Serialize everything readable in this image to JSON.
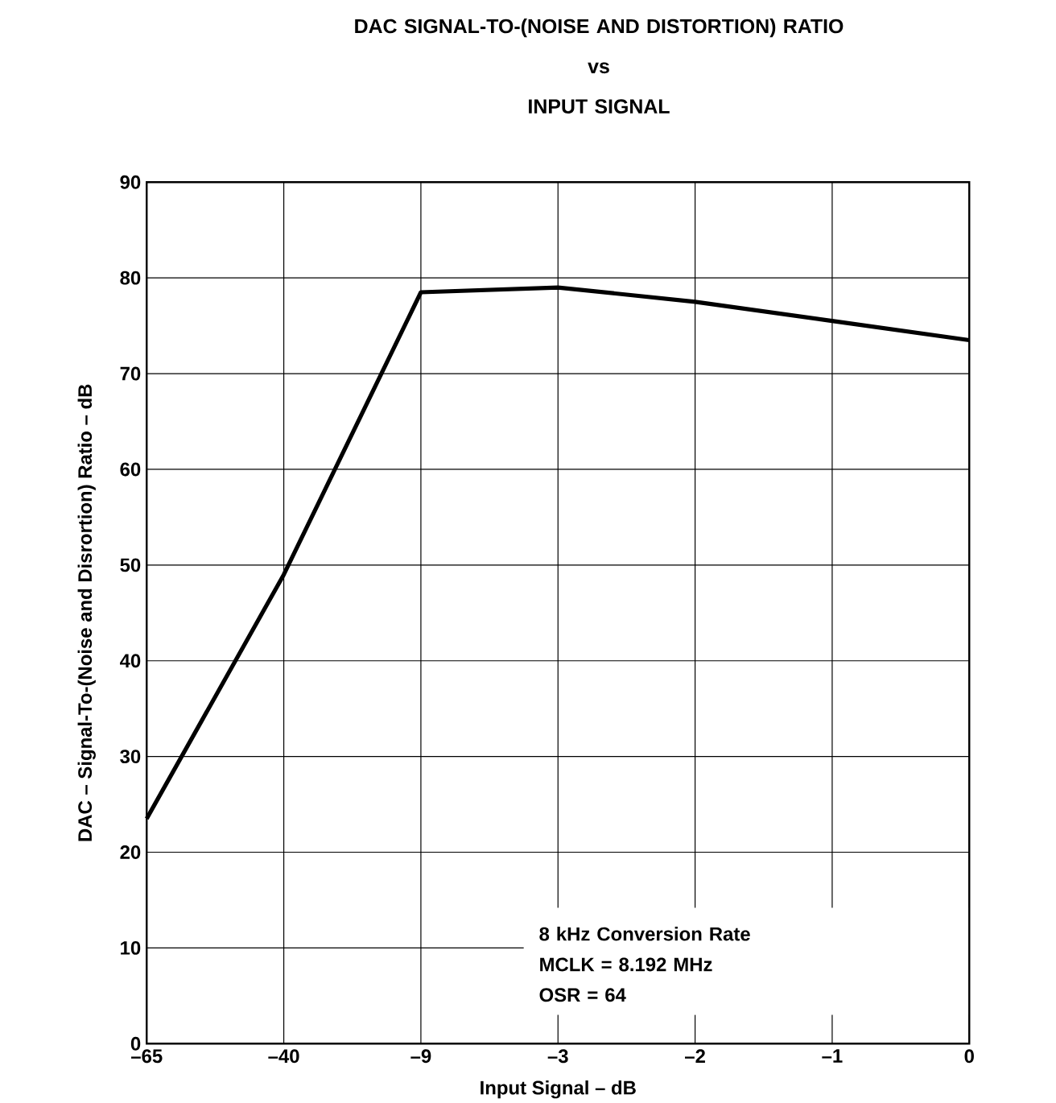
{
  "chart_data": {
    "type": "line",
    "title": "DAC SIGNAL-TO-(NOISE AND DISTORTION) RATIO\nvs\nINPUT SIGNAL",
    "xlabel": "Input Signal – dB",
    "ylabel": "DAC – Signal-To-(Noise and Disrortion) Ratio – dB",
    "categories": [
      "–65",
      "–40",
      "–9",
      "–3",
      "–2",
      "–1",
      "0"
    ],
    "series": [
      {
        "color": "#000000",
        "values": [
          23.5,
          49,
          78.5,
          79,
          77.5,
          75.5,
          73.5
        ]
      }
    ],
    "ylim": [
      0,
      90
    ],
    "yticks": [
      0,
      10,
      20,
      30,
      40,
      50,
      60,
      70,
      80,
      90
    ],
    "grid": true,
    "line_style": "solid",
    "annotations": [
      "8  kHz Conversion Rate",
      "MCLK = 8.192 MHz",
      "OSR = 64"
    ]
  }
}
